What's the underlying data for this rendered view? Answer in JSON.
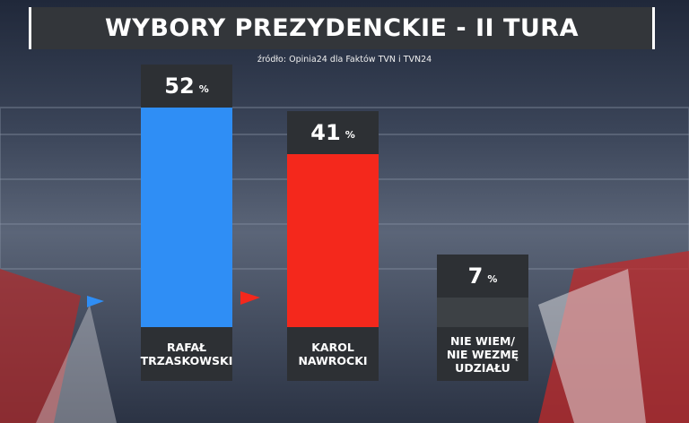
{
  "chart_data": {
    "type": "bar",
    "title": "WYBORY PREZYDENCKIE - II TURA",
    "subtitle": "źródło: Opinia24 dla Faktów TVN i TVN24",
    "categories": [
      "RAFAŁ TRZASKOWSKI",
      "KAROL NAWROCKI",
      "NIE WIEM/ NIE WEZMĘ UDZIAŁU"
    ],
    "values": [
      52,
      41,
      7
    ],
    "unit": "%",
    "colors": [
      "#2f8ef5",
      "#f4281c",
      "#3d4145"
    ]
  }
}
